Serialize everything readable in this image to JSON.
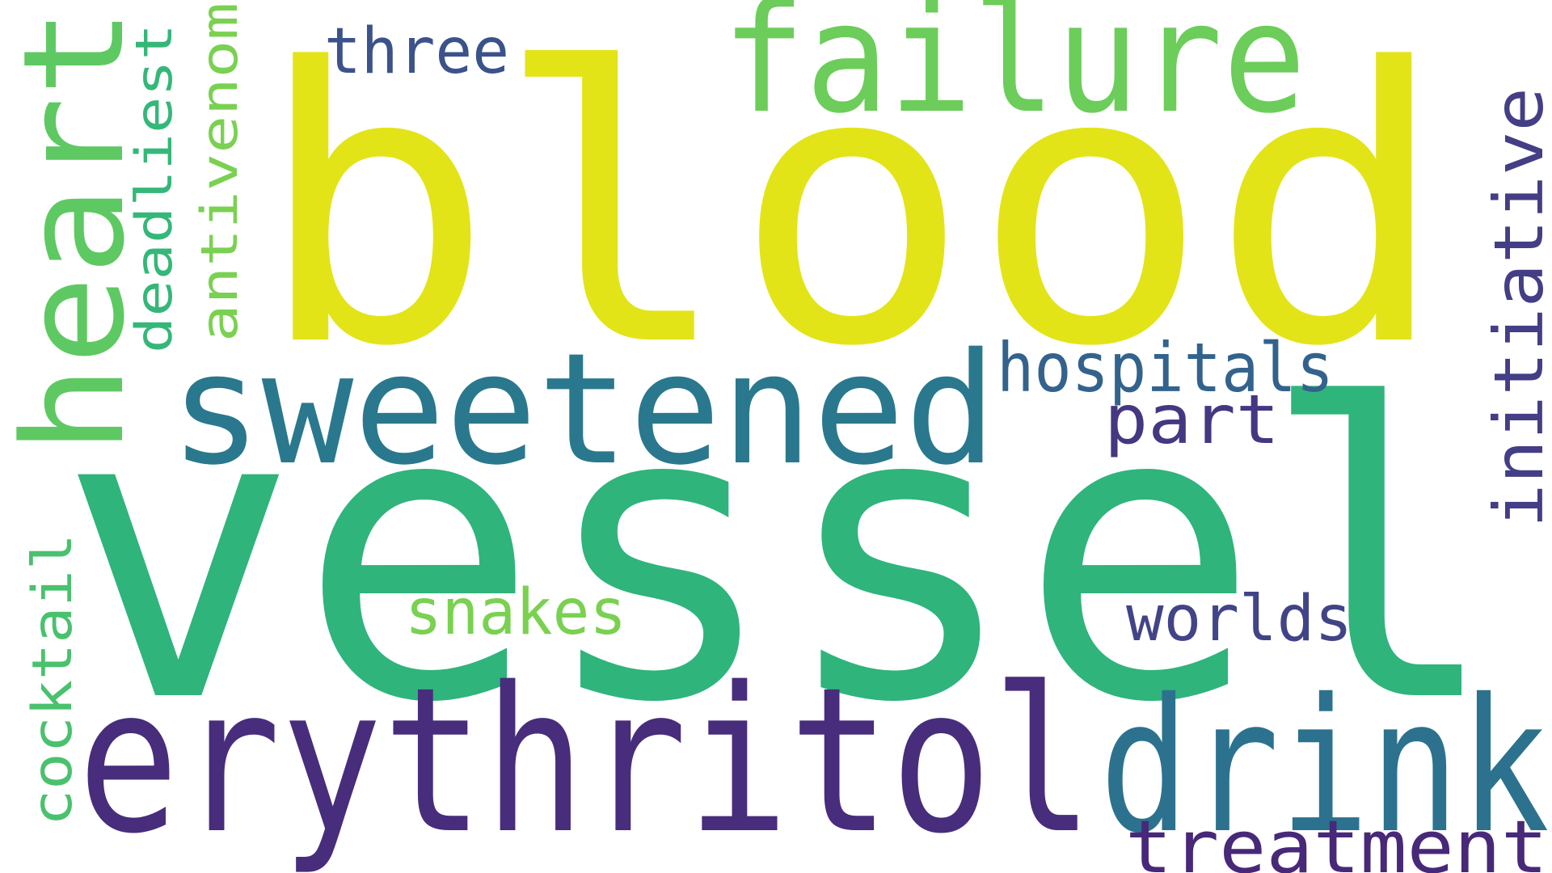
{
  "words": [
    {
      "id": "blood",
      "text": "blood",
      "color": "#e2e418"
    },
    {
      "id": "vessel",
      "text": "vessel",
      "color": "#2fb47c"
    },
    {
      "id": "heart",
      "text": "heart",
      "color": "#5ec962"
    },
    {
      "id": "failure",
      "text": "failure",
      "color": "#6ccd5a"
    },
    {
      "id": "sweetened",
      "text": "sweetened",
      "color": "#2a788e"
    },
    {
      "id": "erythritol",
      "text": "erythritol",
      "color": "#472d7b"
    },
    {
      "id": "drink",
      "text": "drink",
      "color": "#2c728e"
    },
    {
      "id": "deadliest",
      "text": "deadliest",
      "color": "#35b779"
    },
    {
      "id": "antivenom",
      "text": "antivenom",
      "color": "#7ad151"
    },
    {
      "id": "three",
      "text": "three",
      "color": "#3b528b"
    },
    {
      "id": "hospitals",
      "text": "hospitals",
      "color": "#33638d"
    },
    {
      "id": "part",
      "text": "part",
      "color": "#453781"
    },
    {
      "id": "initiative",
      "text": "initiative",
      "color": "#433e85"
    },
    {
      "id": "cocktail",
      "text": "cocktail",
      "color": "#4ac16d"
    },
    {
      "id": "snakes",
      "text": "snakes",
      "color": "#7ad151"
    },
    {
      "id": "worlds",
      "text": "worlds",
      "color": "#414487"
    },
    {
      "id": "treatment",
      "text": "treatment",
      "color": "#482878"
    }
  ]
}
